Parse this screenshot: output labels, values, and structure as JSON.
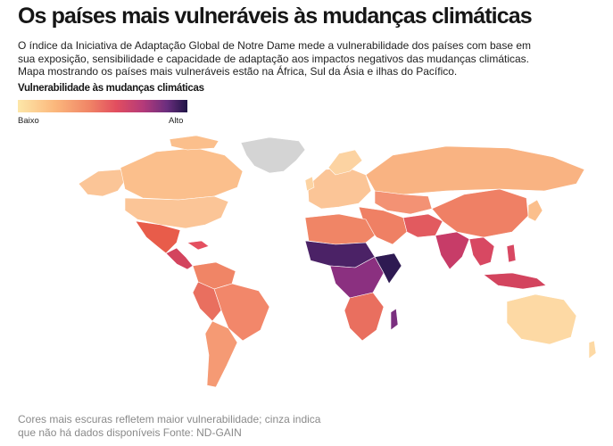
{
  "title": "Os países mais vulneráveis às mudanças climáticas",
  "description": {
    "line1": "O índice da Iniciativa de Adaptação Global de Notre Dame mede a vulnerabilidade dos países com base em",
    "line2": "sua exposição, sensibilidade e capacidade de adaptação aos impactos negativos das mudanças climáticas.",
    "line3": "Mapa mostrando os países mais vulneráveis estão na África, Sul da Ásia e ilhas do Pacífico."
  },
  "legend": {
    "title": "Vulnerabilidade às mudanças climáticas",
    "low_label": "Baixo",
    "high_label": "Alto",
    "colors": [
      "#fde7a9",
      "#fbb77c",
      "#f08566",
      "#e24e5f",
      "#b43a7a",
      "#6a2e7e",
      "#1f1446"
    ],
    "no_data_color": "#d4d4d4"
  },
  "note": {
    "line1": "Cores mais escuras refletem maior vulnerabilidade; cinza indica",
    "line2": "que não há dados disponíveis  Fonte: ND-GAIN"
  }
}
